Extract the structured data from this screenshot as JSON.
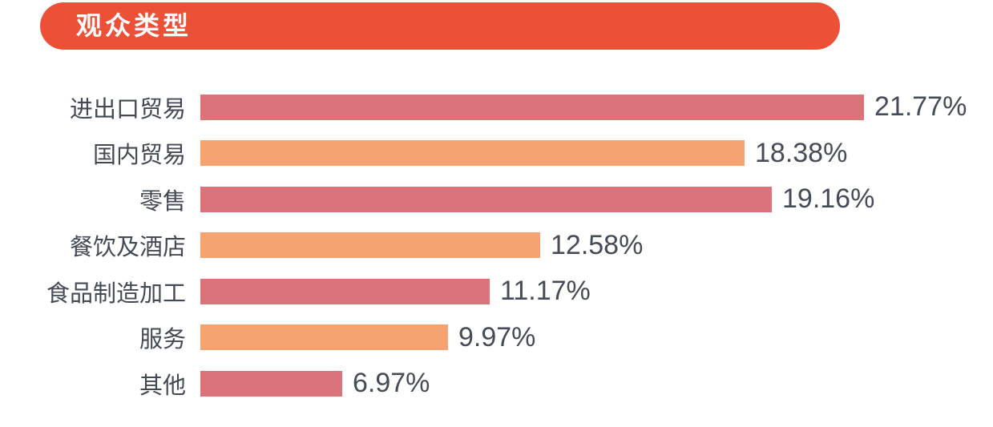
{
  "header": {
    "title": "观众类型",
    "background_color": "#EC5138",
    "text_color": "#FFFFFF"
  },
  "chart_data": {
    "type": "bar",
    "orientation": "horizontal",
    "title": "观众类型",
    "xlabel": "",
    "ylabel": "",
    "grid": false,
    "legend": false,
    "categories": [
      "进出口贸易",
      "国内贸易",
      "零售",
      "餐饮及酒店",
      "食品制造加工",
      "服务",
      "其他"
    ],
    "values": [
      21.77,
      18.38,
      19.16,
      12.58,
      11.17,
      9.97,
      6.97
    ],
    "value_labels": [
      "21.77%",
      "18.38%",
      "19.16%",
      "12.58%",
      "11.17%",
      "9.97%",
      "6.97%"
    ],
    "bar_colors": [
      "#DB737B",
      "#F5A471",
      "#DB737B",
      "#F5A471",
      "#DB737B",
      "#F5A471",
      "#DB737B"
    ],
    "colors": {
      "rose": "#DB737B",
      "orange": "#F5A471",
      "label_text": "#434A55",
      "value_text": "#454C58"
    }
  }
}
